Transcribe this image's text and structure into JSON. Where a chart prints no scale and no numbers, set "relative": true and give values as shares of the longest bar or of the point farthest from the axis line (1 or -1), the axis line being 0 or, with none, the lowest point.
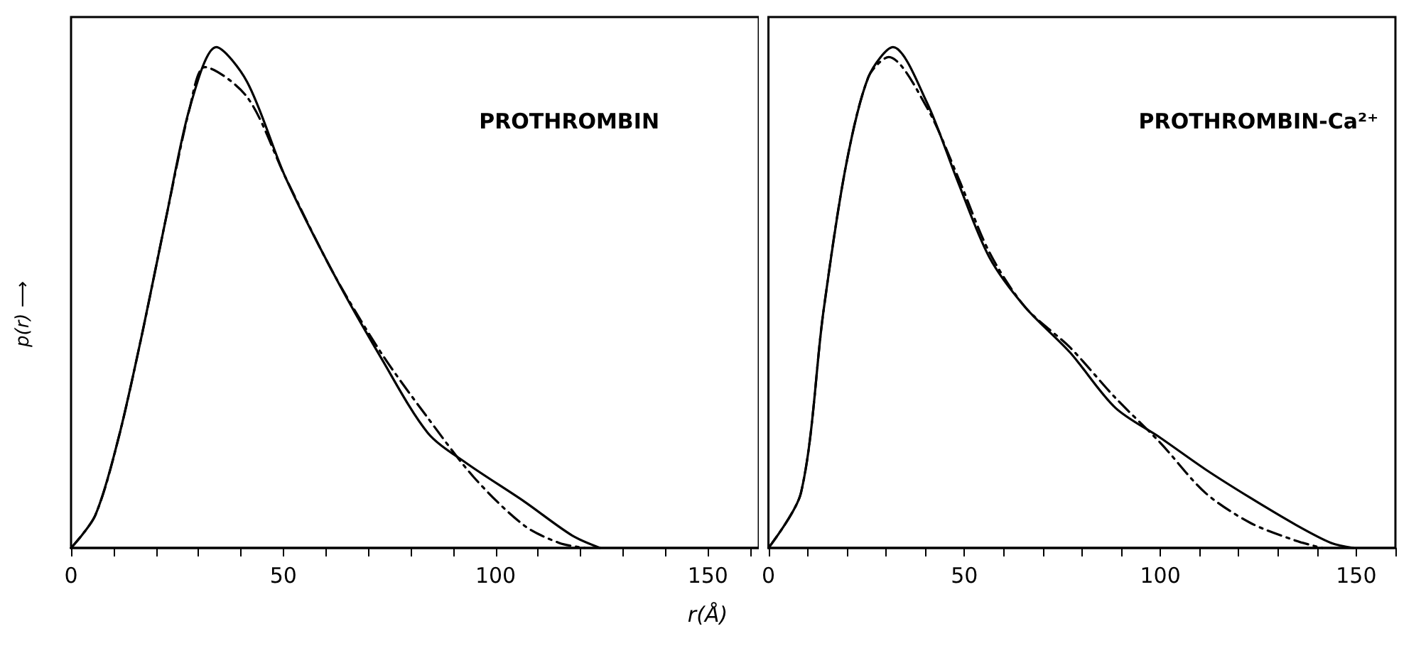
{
  "chart_data": [
    {
      "type": "line",
      "relative": true,
      "ylabel": "p(r) ⟶",
      "xlabel": "r(Å)",
      "annotations": [
        "PROTHROMBIN"
      ],
      "xlim": [
        0,
        162
      ],
      "xticks": [
        0,
        {
          "value": 10,
          "label": null
        },
        {
          "value": 20,
          "label": null
        },
        {
          "value": 30,
          "label": null
        },
        {
          "value": 40,
          "label": null
        },
        50,
        {
          "value": 60,
          "label": null
        },
        {
          "value": 70,
          "label": null
        },
        {
          "value": 80,
          "label": null
        },
        {
          "value": 90,
          "label": null
        },
        100,
        {
          "value": 110,
          "label": null
        },
        {
          "value": 120,
          "label": null
        },
        {
          "value": 130,
          "label": null
        },
        {
          "value": 140,
          "label": null
        },
        150,
        {
          "value": 160,
          "label": null
        }
      ],
      "marker": "none",
      "series": [
        {
          "color": "#000000",
          "line_style": "solid",
          "x": [
            0,
            5.7,
            11.2,
            16.8,
            22.4,
            28,
            34.2,
            41.5,
            50.5,
            61.7,
            73,
            84,
            93,
            106.7,
            118,
            124.6
          ],
          "values": [
            0,
            0.065,
            0.22,
            0.43,
            0.66,
            0.88,
            1,
            0.93,
            0.74,
            0.55,
            0.38,
            0.23,
            0.17,
            0.093,
            0.025,
            0
          ]
        },
        {
          "color": "#000000",
          "line_style": "dashed",
          "x": [
            0,
            5.7,
            11.2,
            16.8,
            22.4,
            28,
            31.5,
            41.5,
            50.5,
            61.7,
            73,
            84,
            95,
            106.7,
            115,
            121
          ],
          "values": [
            0,
            0.065,
            0.22,
            0.43,
            0.66,
            0.88,
            0.96,
            0.9,
            0.74,
            0.55,
            0.39,
            0.26,
            0.14,
            0.045,
            0.01,
            0
          ]
        }
      ]
    },
    {
      "type": "line",
      "relative": true,
      "annotations": [
        "PROTHROMBIN-Ca²⁺"
      ],
      "xlim": [
        0,
        160
      ],
      "xticks": [
        0,
        {
          "value": 10,
          "label": null
        },
        {
          "value": 20,
          "label": null
        },
        {
          "value": 30,
          "label": null
        },
        {
          "value": 40,
          "label": null
        },
        50,
        {
          "value": 60,
          "label": null
        },
        {
          "value": 70,
          "label": null
        },
        {
          "value": 80,
          "label": null
        },
        {
          "value": 90,
          "label": null
        },
        100,
        {
          "value": 110,
          "label": null
        },
        {
          "value": 120,
          "label": null
        },
        {
          "value": 130,
          "label": null
        },
        {
          "value": 140,
          "label": null
        },
        150,
        {
          "value": 160,
          "label": null
        }
      ],
      "marker": "none",
      "series": [
        {
          "color": "#000000",
          "line_style": "solid",
          "x": [
            0,
            8.3,
            14,
            19.7,
            25.5,
            31.8,
            40.4,
            48.4,
            56.4,
            65.6,
            77,
            88.5,
            100,
            111.5,
            123,
            134.4,
            143.6,
            149.3
          ],
          "values": [
            0,
            0.11,
            0.47,
            0.76,
            0.94,
            1,
            0.89,
            0.73,
            0.58,
            0.48,
            0.39,
            0.28,
            0.22,
            0.157,
            0.1,
            0.047,
            0.01,
            0
          ]
        },
        {
          "color": "#000000",
          "line_style": "dashed",
          "x": [
            0,
            8.3,
            14,
            19.7,
            25.5,
            30.7,
            40.4,
            48.4,
            56.4,
            65.6,
            77,
            88.5,
            100,
            111.5,
            123,
            134.4,
            141.3
          ],
          "values": [
            0,
            0.11,
            0.47,
            0.76,
            0.94,
            0.98,
            0.88,
            0.74,
            0.59,
            0.48,
            0.4,
            0.3,
            0.21,
            0.11,
            0.05,
            0.015,
            0
          ]
        }
      ]
    }
  ]
}
